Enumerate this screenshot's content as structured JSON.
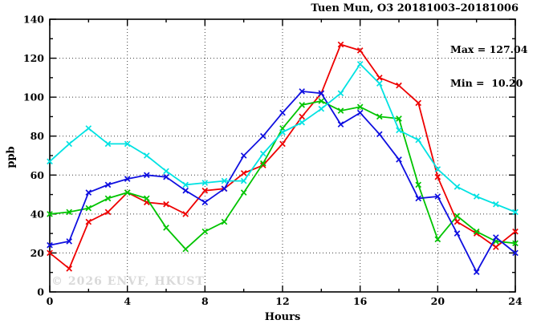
{
  "chart_data": {
    "type": "line",
    "title": "Tuen Mun, O3 20181003–20181006",
    "xlabel": "Hours",
    "ylabel": "ppb",
    "xlim": [
      0,
      24
    ],
    "ylim": [
      0,
      140
    ],
    "x": [
      0,
      1,
      2,
      3,
      4,
      5,
      6,
      7,
      8,
      9,
      10,
      11,
      12,
      13,
      14,
      15,
      16,
      17,
      18,
      19,
      20,
      21,
      22,
      23,
      24
    ],
    "x_major_ticks": [
      0,
      4,
      8,
      12,
      16,
      20,
      24
    ],
    "x_minor_ticks": [
      2,
      6,
      10,
      14,
      18,
      22
    ],
    "y_major_ticks": [
      0,
      20,
      40,
      60,
      80,
      100,
      120,
      140
    ],
    "y_minor_ticks": [
      10,
      30,
      50,
      70,
      90,
      110,
      130
    ],
    "grid_x": [
      4,
      8,
      12,
      16,
      20
    ],
    "grid_y": [
      20,
      40,
      60,
      80,
      100,
      120
    ],
    "grid_on": true,
    "legend_position": "top-right-inside",
    "legend": [
      "Max = 127.04",
      "Min =  10.20"
    ],
    "stats": {
      "max": 127.04,
      "min": 10.2
    },
    "marker": "x",
    "series": [
      {
        "name": "red",
        "color": "#ee0000",
        "values": [
          20,
          12,
          36,
          41,
          51,
          46,
          45,
          40,
          52,
          53,
          61,
          65,
          76,
          90,
          102,
          127.04,
          124,
          110,
          106,
          97,
          59,
          36,
          30,
          23,
          31
        ]
      },
      {
        "name": "green",
        "color": "#00c400",
        "values": [
          40,
          41,
          43,
          48,
          51,
          48,
          33,
          22,
          31,
          36,
          51,
          66,
          84,
          96,
          98,
          93,
          95,
          90,
          89,
          55,
          27,
          39,
          31,
          26,
          25
        ]
      },
      {
        "name": "blue",
        "color": "#0f0fe0",
        "values": [
          24,
          26,
          51,
          55,
          58,
          60,
          59,
          52,
          46,
          53,
          70,
          80,
          92,
          103,
          102,
          86,
          92,
          81,
          68,
          48,
          49,
          30,
          10.2,
          28,
          20
        ]
      },
      {
        "name": "cyan",
        "color": "#00e2e2",
        "values": [
          67,
          76,
          84,
          76,
          76,
          70,
          62,
          55,
          56,
          57,
          57,
          71,
          82,
          87,
          94,
          102,
          117,
          107,
          83,
          78,
          63,
          54,
          49,
          45,
          41
        ]
      }
    ],
    "watermark": "© 2026 ENVF, HKUST"
  }
}
